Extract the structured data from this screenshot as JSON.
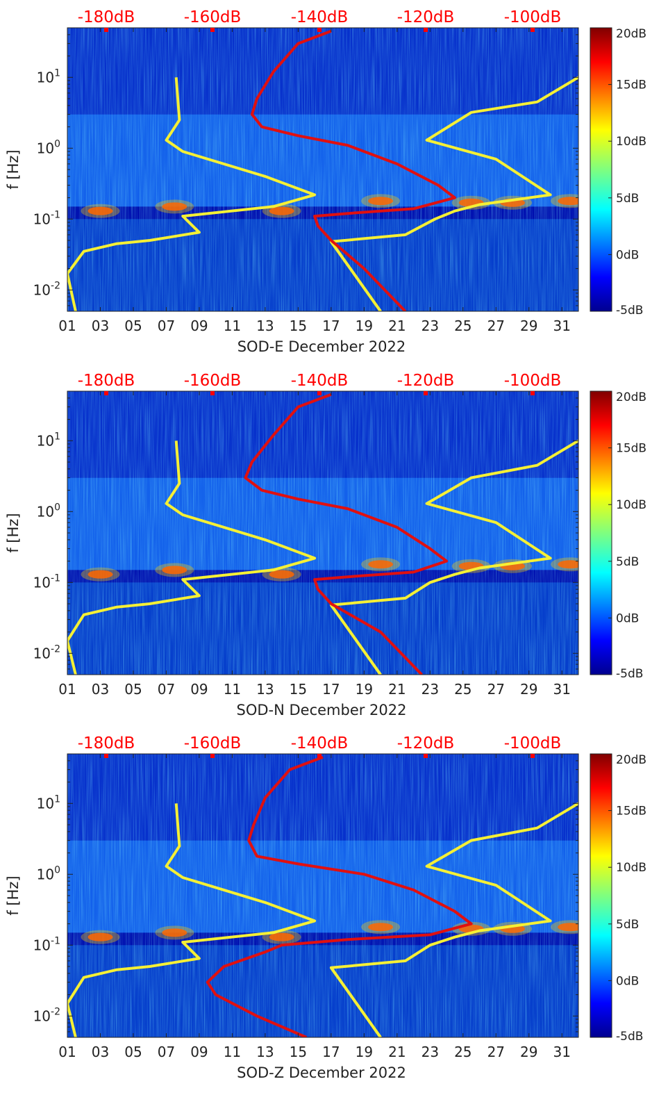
{
  "colors": {
    "background_low": "#00008f",
    "red_curve": "#e01010",
    "yellow_curve": "#f5f035",
    "top_axis_text": "#ff0000",
    "axis_text": "#222222"
  },
  "chart_data": [
    {
      "type": "heatmap",
      "xlabel": "SOD-E December 2022",
      "ylabel": "f [Hz]",
      "y_scale": "log",
      "ylim": [
        0.005,
        50
      ],
      "xlim": [
        1,
        32
      ],
      "x_ticks": [
        "01",
        "03",
        "05",
        "07",
        "09",
        "11",
        "13",
        "15",
        "17",
        "19",
        "21",
        "23",
        "25",
        "27",
        "29",
        "31"
      ],
      "y_ticks": [
        {
          "v": 0.01,
          "base": "10",
          "exp": "-2"
        },
        {
          "v": 0.1,
          "base": "10",
          "exp": "-1"
        },
        {
          "v": 1,
          "base": "10",
          "exp": "0"
        },
        {
          "v": 10,
          "base": "10",
          "exp": "1"
        }
      ],
      "top_axis_labels": [
        "-180dB",
        "-160dB",
        "-140dB",
        "-120dB",
        "-100dB"
      ],
      "colorbar": {
        "range": [
          -5,
          20
        ],
        "labels": [
          "20dB",
          "15dB",
          "10dB",
          "5dB",
          "0dB",
          "-5dB"
        ],
        "colormap": "jet"
      },
      "series": [
        {
          "color": "yellow",
          "points": [
            [
              7.6,
              10
            ],
            [
              7.8,
              2.5
            ],
            [
              7,
              1.3
            ],
            [
              8,
              0.9
            ],
            [
              13,
              0.4
            ],
            [
              16,
              0.22
            ],
            [
              13.5,
              0.15
            ],
            [
              8,
              0.11
            ],
            [
              9,
              0.065
            ],
            [
              6,
              0.05
            ],
            [
              4,
              0.045
            ],
            [
              2,
              0.035
            ],
            [
              1,
              0.017
            ],
            [
              1.5,
              0.005
            ]
          ]
        },
        {
          "color": "yellow",
          "points": [
            [
              32,
              10
            ],
            [
              29.5,
              4.5
            ],
            [
              25.5,
              3.2
            ],
            [
              22.8,
              1.3
            ],
            [
              27,
              0.7
            ],
            [
              30.3,
              0.22
            ],
            [
              26,
              0.16
            ],
            [
              24.5,
              0.13
            ],
            [
              23.3,
              0.1
            ],
            [
              21.5,
              0.06
            ],
            [
              17,
              0.048
            ],
            [
              20,
              0.005
            ]
          ]
        },
        {
          "color": "yellow",
          "points": [
            [
              17,
              0.048
            ],
            [
              20,
              0.005
            ]
          ]
        },
        {
          "color": "red",
          "points": [
            [
              17,
              45
            ],
            [
              15,
              30
            ],
            [
              13.5,
              12
            ],
            [
              12.5,
              5
            ],
            [
              12.2,
              3
            ],
            [
              12.8,
              2
            ],
            [
              15,
              1.5
            ],
            [
              18,
              1.1
            ],
            [
              21,
              0.6
            ],
            [
              23.5,
              0.3
            ],
            [
              24.5,
              0.2
            ],
            [
              22,
              0.14
            ],
            [
              18,
              0.12
            ],
            [
              16,
              0.11
            ],
            [
              16.2,
              0.08
            ],
            [
              17,
              0.05
            ],
            [
              19,
              0.02
            ],
            [
              21.5,
              0.005
            ]
          ]
        }
      ]
    },
    {
      "type": "heatmap",
      "xlabel": "SOD-N December 2022",
      "ylabel": "f [Hz]",
      "y_scale": "log",
      "ylim": [
        0.005,
        50
      ],
      "xlim": [
        1,
        32
      ],
      "x_ticks": [
        "01",
        "03",
        "05",
        "07",
        "09",
        "11",
        "13",
        "15",
        "17",
        "19",
        "21",
        "23",
        "25",
        "27",
        "29",
        "31"
      ],
      "y_ticks": [
        {
          "v": 0.01,
          "base": "10",
          "exp": "-2"
        },
        {
          "v": 0.1,
          "base": "10",
          "exp": "-1"
        },
        {
          "v": 1,
          "base": "10",
          "exp": "0"
        },
        {
          "v": 10,
          "base": "10",
          "exp": "1"
        }
      ],
      "top_axis_labels": [
        "-180dB",
        "-160dB",
        "-140dB",
        "-120dB",
        "-100dB"
      ],
      "colorbar": {
        "range": [
          -5,
          20
        ],
        "labels": [
          "20dB",
          "15dB",
          "10dB",
          "5dB",
          "0dB",
          "-5dB"
        ],
        "colormap": "jet"
      },
      "series": [
        {
          "color": "yellow",
          "points": [
            [
              7.6,
              10
            ],
            [
              7.8,
              2.5
            ],
            [
              7,
              1.3
            ],
            [
              8,
              0.9
            ],
            [
              13,
              0.4
            ],
            [
              16,
              0.22
            ],
            [
              13.5,
              0.15
            ],
            [
              8,
              0.11
            ],
            [
              9,
              0.065
            ],
            [
              6,
              0.05
            ],
            [
              4,
              0.045
            ],
            [
              2,
              0.035
            ],
            [
              1,
              0.015
            ],
            [
              1.5,
              0.005
            ]
          ]
        },
        {
          "color": "yellow",
          "points": [
            [
              32,
              10
            ],
            [
              29.5,
              4.5
            ],
            [
              25.5,
              3
            ],
            [
              22.8,
              1.3
            ],
            [
              27,
              0.7
            ],
            [
              30.3,
              0.22
            ],
            [
              26,
              0.16
            ],
            [
              24.5,
              0.13
            ],
            [
              23,
              0.1
            ],
            [
              21.5,
              0.06
            ],
            [
              17,
              0.048
            ],
            [
              20,
              0.005
            ]
          ]
        },
        {
          "color": "yellow",
          "points": [
            [
              17,
              0.048
            ],
            [
              20,
              0.005
            ]
          ]
        },
        {
          "color": "red",
          "points": [
            [
              17,
              45
            ],
            [
              15,
              30
            ],
            [
              13.5,
              12
            ],
            [
              12.2,
              5
            ],
            [
              11.8,
              3
            ],
            [
              12.8,
              2
            ],
            [
              15,
              1.5
            ],
            [
              18,
              1.1
            ],
            [
              21,
              0.6
            ],
            [
              23,
              0.3
            ],
            [
              24,
              0.2
            ],
            [
              22,
              0.14
            ],
            [
              18,
              0.12
            ],
            [
              16,
              0.11
            ],
            [
              16.2,
              0.08
            ],
            [
              17,
              0.05
            ],
            [
              20,
              0.02
            ],
            [
              22.5,
              0.005
            ]
          ]
        }
      ]
    },
    {
      "type": "heatmap",
      "xlabel": "SOD-Z December 2022",
      "ylabel": "f [Hz]",
      "y_scale": "log",
      "ylim": [
        0.005,
        50
      ],
      "xlim": [
        1,
        32
      ],
      "x_ticks": [
        "01",
        "03",
        "05",
        "07",
        "09",
        "11",
        "13",
        "15",
        "17",
        "19",
        "21",
        "23",
        "25",
        "27",
        "29",
        "31"
      ],
      "y_ticks": [
        {
          "v": 0.01,
          "base": "10",
          "exp": "-2"
        },
        {
          "v": 0.1,
          "base": "10",
          "exp": "-1"
        },
        {
          "v": 1,
          "base": "10",
          "exp": "0"
        },
        {
          "v": 10,
          "base": "10",
          "exp": "1"
        }
      ],
      "top_axis_labels": [
        "-180dB",
        "-160dB",
        "-140dB",
        "-120dB",
        "-100dB"
      ],
      "colorbar": {
        "range": [
          -5,
          20
        ],
        "labels": [
          "20dB",
          "15dB",
          "10dB",
          "5dB",
          "0dB",
          "-5dB"
        ],
        "colormap": "jet"
      },
      "series": [
        {
          "color": "yellow",
          "points": [
            [
              7.6,
              10
            ],
            [
              7.8,
              2.5
            ],
            [
              7,
              1.3
            ],
            [
              8,
              0.9
            ],
            [
              13,
              0.4
            ],
            [
              16,
              0.22
            ],
            [
              13.5,
              0.15
            ],
            [
              8,
              0.11
            ],
            [
              9,
              0.065
            ],
            [
              6,
              0.05
            ],
            [
              4,
              0.045
            ],
            [
              2,
              0.035
            ],
            [
              1,
              0.015
            ],
            [
              1.5,
              0.005
            ]
          ]
        },
        {
          "color": "yellow",
          "points": [
            [
              32,
              10
            ],
            [
              29.5,
              4.5
            ],
            [
              25.5,
              3
            ],
            [
              22.8,
              1.3
            ],
            [
              27,
              0.7
            ],
            [
              30.3,
              0.22
            ],
            [
              26,
              0.16
            ],
            [
              24.5,
              0.13
            ],
            [
              23,
              0.1
            ],
            [
              21.5,
              0.06
            ],
            [
              17,
              0.048
            ],
            [
              20,
              0.005
            ]
          ]
        },
        {
          "color": "yellow",
          "points": [
            [
              17,
              0.048
            ],
            [
              20,
              0.005
            ]
          ]
        },
        {
          "color": "red",
          "points": [
            [
              16.5,
              45
            ],
            [
              14.5,
              30
            ],
            [
              13,
              12
            ],
            [
              12.3,
              5
            ],
            [
              12,
              3
            ],
            [
              12.5,
              1.8
            ],
            [
              15,
              1.4
            ],
            [
              19,
              1.0
            ],
            [
              22,
              0.6
            ],
            [
              24.5,
              0.3
            ],
            [
              25.5,
              0.2
            ],
            [
              23,
              0.14
            ],
            [
              18,
              0.12
            ],
            [
              14,
              0.1
            ],
            [
              13,
              0.08
            ],
            [
              10.5,
              0.05
            ],
            [
              9.5,
              0.03
            ],
            [
              10,
              0.02
            ],
            [
              12.5,
              0.01
            ],
            [
              15.5,
              0.005
            ]
          ]
        }
      ]
    }
  ]
}
